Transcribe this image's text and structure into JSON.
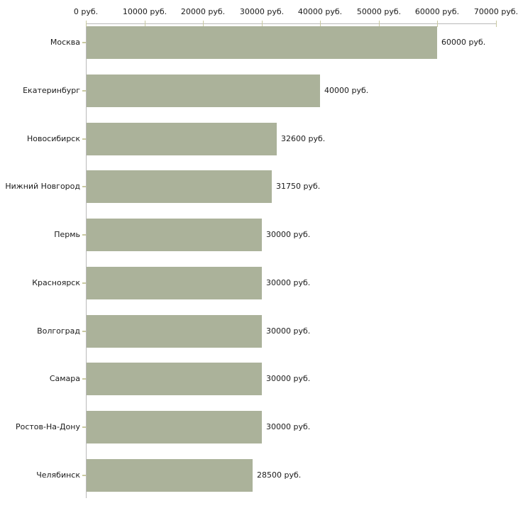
{
  "chart_data": {
    "type": "bar",
    "orientation": "horizontal",
    "title": "",
    "categories": [
      "Москва",
      "Екатеринбург",
      "Новосибирск",
      "Нижний Новгород",
      "Пермь",
      "Красноярск",
      "Волгоград",
      "Самара",
      "Ростов-На-Дону",
      "Челябинск"
    ],
    "values": [
      60000,
      40000,
      32600,
      31750,
      30000,
      30000,
      30000,
      30000,
      30000,
      28500
    ],
    "value_labels": [
      "60000 руб.",
      "40000 руб.",
      "32600 руб.",
      "31750 руб.",
      "30000 руб.",
      "30000 руб.",
      "30000 руб.",
      "30000 руб.",
      "30000 руб.",
      "28500 руб."
    ],
    "x_axis": {
      "position": "top",
      "range": [
        0,
        70000
      ],
      "ticks": [
        0,
        10000,
        20000,
        30000,
        40000,
        50000,
        60000,
        70000
      ],
      "tick_labels": [
        "0 руб.",
        "10000 руб.",
        "20000 руб.",
        "30000 руб.",
        "40000 руб.",
        "50000 руб.",
        "60000 руб.",
        "70000 руб."
      ]
    },
    "xlabel": "",
    "ylabel": "",
    "grid": false,
    "legend": false,
    "colors": {
      "bar": "#abb29a",
      "axis_line": "#b9b9b9",
      "tick": "#c9c9a0",
      "text": "#1a1a1a",
      "background": "#ffffff"
    }
  }
}
